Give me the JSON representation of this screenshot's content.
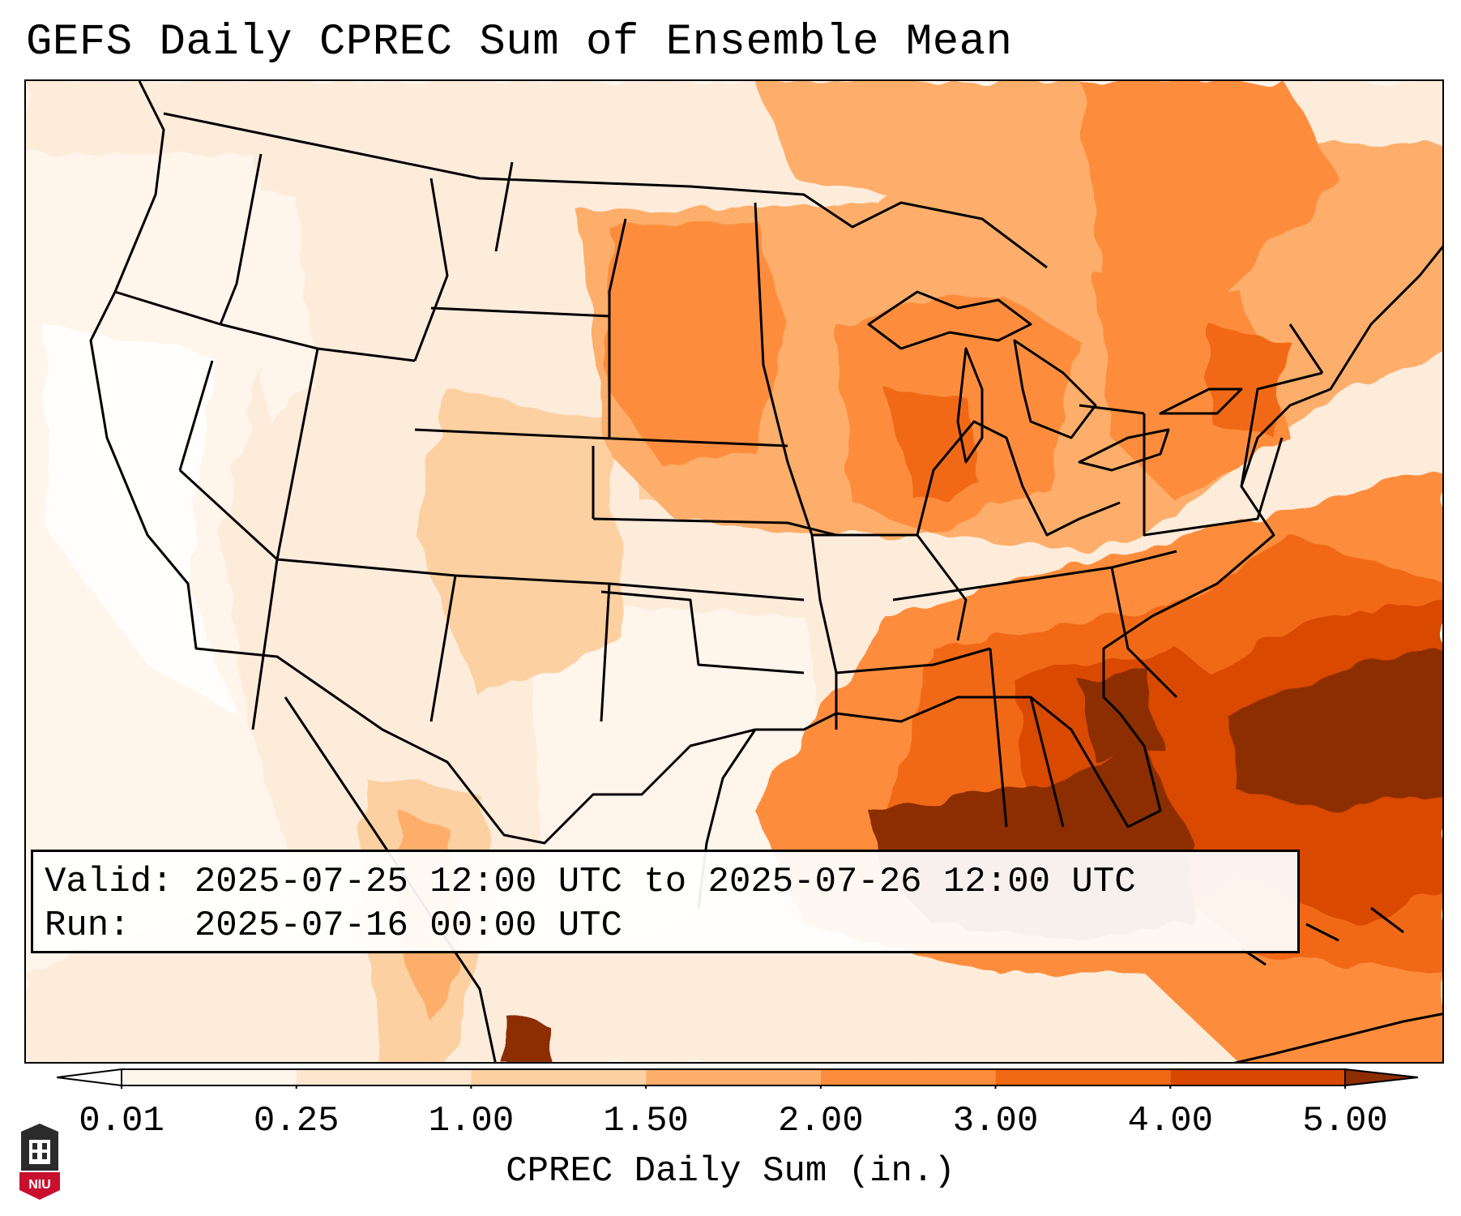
{
  "title": "GEFS Daily CPREC Sum of Ensemble Mean",
  "info": {
    "valid_label": "Valid:",
    "valid_value": "2025-07-25 12:00 UTC to 2025-07-26 12:00 UTC",
    "run_label": "Run:",
    "run_value": "2025-07-16 00:00 UTC"
  },
  "colorbar": {
    "label": "CPREC Daily Sum (in.)",
    "levels": [
      "0.01",
      "0.25",
      "1.00",
      "1.50",
      "2.00",
      "3.00",
      "4.00",
      "5.00"
    ],
    "colors": [
      "#fff5eb",
      "#fee6ce",
      "#fdd0a2",
      "#fdae6b",
      "#fd8d3c",
      "#f16913",
      "#d94801",
      "#8c2d04"
    ],
    "extend": "both"
  },
  "map": {
    "projection": "Lambert Conformal (CONUS)",
    "features": [
      "state borders",
      "coastlines",
      "national borders"
    ],
    "precip_regions_in": [
      {
        "area": "Gulf of Mexico / Florida Panhandle",
        "level": "5.00"
      },
      {
        "area": "Atlantic off Southeast coast",
        "level": "5.00"
      },
      {
        "area": "Georgia / Alabama",
        "level": "4.00"
      },
      {
        "area": "Southeast / Tennessee Valley",
        "level": "3.00"
      },
      {
        "area": "Great Lakes / Upper Midwest",
        "level": "2.00"
      },
      {
        "area": "Northern Plains",
        "level": "2.00"
      },
      {
        "area": "Central Rockies",
        "level": "1.00"
      },
      {
        "area": "Pacific Northwest / Great Basin",
        "level": "0.01"
      }
    ]
  },
  "logo": {
    "text": "NIU",
    "icon": "university-seal-icon",
    "color": "#c8102e"
  }
}
